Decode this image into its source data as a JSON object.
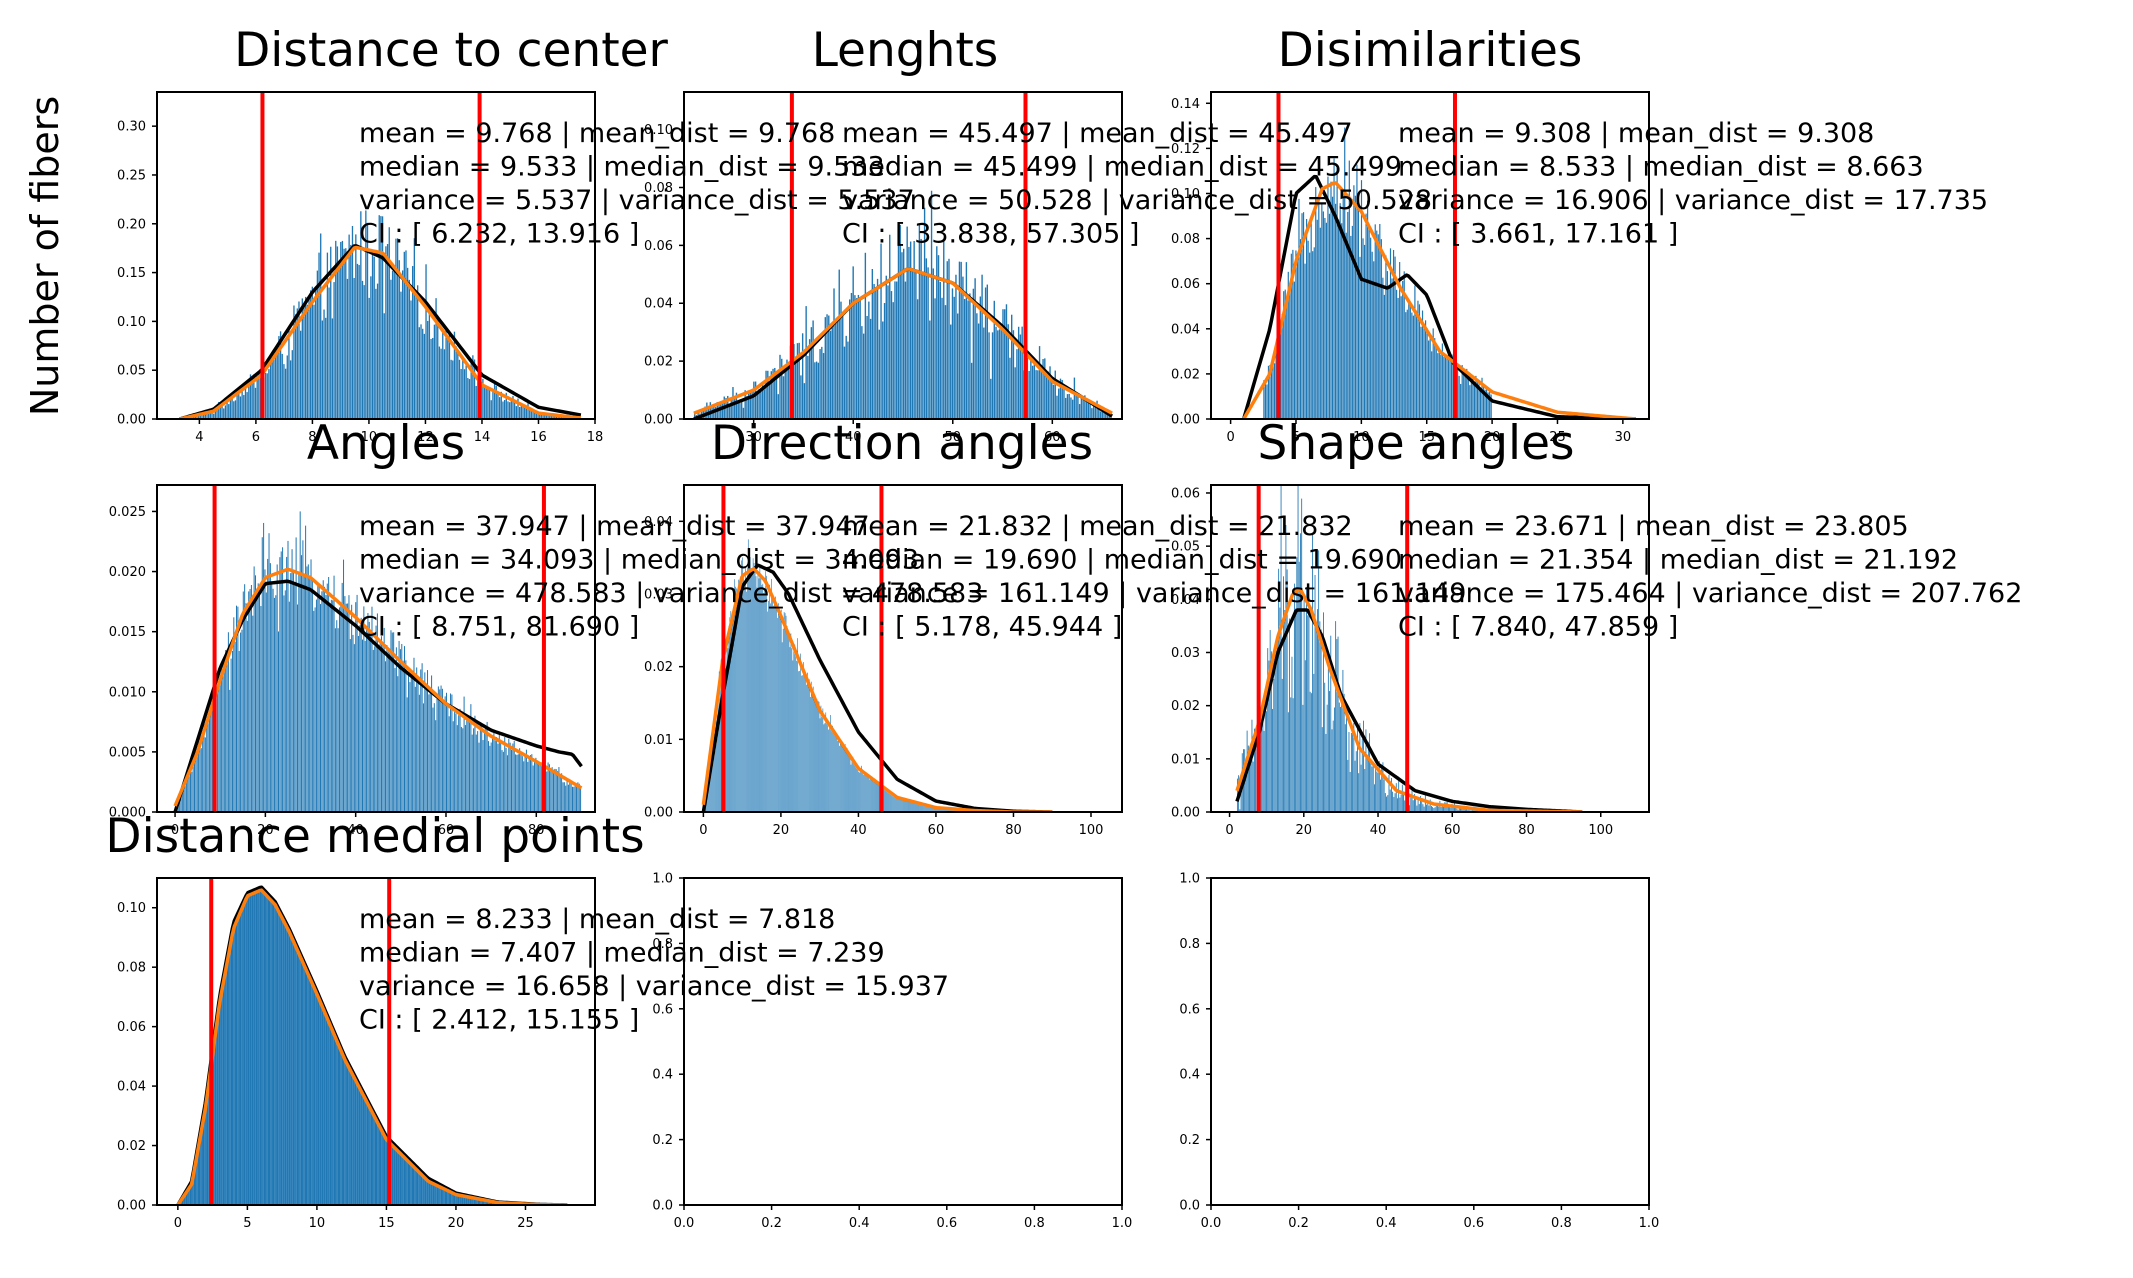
{
  "figure": {
    "ylabel": "Number of fibers"
  },
  "colors": {
    "hist": "#1f77b4",
    "kde": "#000000",
    "fit": "#ff7f0e",
    "ci_lines": "#ff0000"
  },
  "chart_data": [
    {
      "type": "bar",
      "title": "Distance to center",
      "xlim": [
        2.5,
        18
      ],
      "ylim": [
        0,
        0.335
      ],
      "xticks": [
        4,
        6,
        8,
        10,
        12,
        14,
        16,
        18
      ],
      "yticks": [
        0.0,
        0.05,
        0.1,
        0.15,
        0.2,
        0.25,
        0.3
      ],
      "ytick_decimals": 2,
      "ci_lines": [
        6.232,
        13.916
      ],
      "hist_range": [
        3.3,
        17.5
      ],
      "hist_bins": 240,
      "hist_peak": 0.27,
      "hist_noise": 0.25,
      "kde": {
        "x": [
          3.3,
          4.5,
          6.2,
          8,
          9.5,
          10.5,
          12,
          14,
          16,
          17.5
        ],
        "y": [
          0.0,
          0.01,
          0.05,
          0.13,
          0.178,
          0.165,
          0.12,
          0.045,
          0.012,
          0.004
        ]
      },
      "fit": {
        "x": [
          3.3,
          4.5,
          6.2,
          8,
          9.5,
          10.5,
          12,
          14,
          16,
          17.5
        ],
        "y": [
          0.0,
          0.008,
          0.045,
          0.12,
          0.176,
          0.17,
          0.115,
          0.035,
          0.006,
          0.001
        ]
      },
      "stats": [
        "mean = 9.768   |   mean_dist = 9.768",
        "median = 9.533   |   median_dist = 9.533",
        "variance = 5.537   |   variance_dist = 5.537",
        "CI : [ 6.232, 13.916 ]"
      ]
    },
    {
      "type": "bar",
      "title": "Lenghts",
      "xlim": [
        23,
        67
      ],
      "ylim": [
        0,
        0.113
      ],
      "xticks": [
        30,
        40,
        50,
        60
      ],
      "yticks": [
        0.0,
        0.02,
        0.04,
        0.06,
        0.08,
        0.1
      ],
      "ytick_decimals": 2,
      "ci_lines": [
        33.838,
        57.305
      ],
      "hist_range": [
        24,
        66
      ],
      "hist_bins": 240,
      "hist_peak": 0.085,
      "hist_noise": 0.35,
      "kde": {
        "x": [
          24,
          30,
          35,
          40,
          45.5,
          50,
          55,
          60,
          66
        ],
        "y": [
          0.0,
          0.008,
          0.022,
          0.04,
          0.052,
          0.047,
          0.032,
          0.014,
          0.001
        ]
      },
      "fit": {
        "x": [
          24,
          30,
          35,
          40,
          45.5,
          50,
          55,
          60,
          66
        ],
        "y": [
          0.002,
          0.01,
          0.023,
          0.04,
          0.052,
          0.047,
          0.031,
          0.013,
          0.002
        ]
      },
      "stats": [
        "mean = 45.497   |   mean_dist = 45.497",
        "median = 45.499   |   median_dist = 45.499",
        "variance = 50.528   |   variance_dist = 50.528",
        "CI : [ 33.838, 57.305 ]"
      ]
    },
    {
      "type": "bar",
      "title": "Disimilarities",
      "xlim": [
        -1.5,
        32
      ],
      "ylim": [
        0,
        0.145
      ],
      "xticks": [
        0,
        5,
        10,
        15,
        20,
        25,
        30
      ],
      "yticks": [
        0.0,
        0.02,
        0.04,
        0.06,
        0.08,
        0.1,
        0.12,
        0.14
      ],
      "ytick_decimals": 2,
      "ci_lines": [
        3.661,
        17.161
      ],
      "hist_range": [
        2.5,
        20
      ],
      "hist_bins": 150,
      "hist_peak": 0.125,
      "hist_noise": 0.18,
      "kde": {
        "x": [
          1,
          3,
          5,
          6.5,
          8,
          10,
          12,
          13.5,
          15,
          17,
          20,
          25,
          31
        ],
        "y": [
          0.0,
          0.04,
          0.1,
          0.108,
          0.09,
          0.062,
          0.058,
          0.064,
          0.055,
          0.025,
          0.008,
          0.001,
          0.0
        ]
      },
      "fit": {
        "x": [
          1,
          3,
          5,
          7,
          8,
          10,
          13,
          16,
          20,
          25,
          31
        ],
        "y": [
          0.0,
          0.02,
          0.07,
          0.102,
          0.105,
          0.092,
          0.058,
          0.03,
          0.012,
          0.003,
          0.0
        ]
      },
      "stats": [
        "mean = 9.308   |   mean_dist = 9.308",
        "median = 8.533   |   median_dist = 8.663",
        "variance = 16.906   |   variance_dist = 17.735",
        "CI : [ 3.661, 17.161 ]"
      ]
    },
    {
      "type": "bar",
      "title": "Angles",
      "xlim": [
        -4,
        93
      ],
      "ylim": [
        0,
        0.0272
      ],
      "xticks": [
        0,
        20,
        40,
        60,
        80
      ],
      "yticks": [
        0.0,
        0.005,
        0.01,
        0.015,
        0.02,
        0.025
      ],
      "ytick_decimals": 3,
      "ci_lines": [
        8.751,
        81.69
      ],
      "hist_range": [
        0,
        90
      ],
      "hist_bins": 300,
      "hist_peak": 0.022,
      "hist_noise": 0.15,
      "kde": {
        "x": [
          0,
          5,
          10,
          15,
          20,
          25,
          30,
          40,
          50,
          60,
          70,
          80,
          85,
          88,
          90
        ],
        "y": [
          0.0,
          0.006,
          0.012,
          0.016,
          0.019,
          0.0192,
          0.0185,
          0.0155,
          0.012,
          0.009,
          0.0068,
          0.0055,
          0.005,
          0.0048,
          0.0038
        ]
      },
      "fit": {
        "x": [
          0,
          5,
          10,
          15,
          20,
          25,
          30,
          40,
          50,
          60,
          70,
          80,
          90
        ],
        "y": [
          0.0005,
          0.005,
          0.011,
          0.0165,
          0.0195,
          0.0202,
          0.0195,
          0.0162,
          0.0125,
          0.009,
          0.0063,
          0.0042,
          0.002
        ]
      },
      "stats": [
        "mean = 37.947   |   mean_dist = 37.947",
        "median = 34.093   |   median_dist = 34.093",
        "variance = 478.583   |   variance_dist = 478.583",
        "CI : [ 8.751, 81.690 ]"
      ]
    },
    {
      "type": "bar",
      "title": "Direction angles",
      "xlim": [
        -5,
        108
      ],
      "ylim": [
        0,
        0.045
      ],
      "xticks": [
        0,
        20,
        40,
        60,
        80,
        100
      ],
      "yticks": [
        0.0,
        0.01,
        0.02,
        0.03,
        0.04
      ],
      "ytick_decimals": 2,
      "ci_lines": [
        5.178,
        45.944
      ],
      "hist_range": [
        0,
        75
      ],
      "hist_bins": 300,
      "hist_peak": 0.034,
      "hist_noise": 0.08,
      "kde": {
        "x": [
          0,
          5,
          10,
          14,
          18,
          22,
          30,
          40,
          50,
          60,
          70,
          80,
          90
        ],
        "y": [
          0.0,
          0.016,
          0.031,
          0.034,
          0.033,
          0.03,
          0.021,
          0.011,
          0.0045,
          0.0015,
          0.0005,
          0.0001,
          0.0
        ]
      },
      "fit": {
        "x": [
          0,
          5,
          10,
          13,
          16,
          20,
          30,
          40,
          50,
          60,
          70,
          80,
          90
        ],
        "y": [
          0.001,
          0.021,
          0.0325,
          0.0335,
          0.0318,
          0.027,
          0.014,
          0.006,
          0.002,
          0.0006,
          0.0002,
          0.0,
          0.0
        ]
      },
      "stats": [
        "mean = 21.832   |   mean_dist = 21.832",
        "median = 19.690   |   median_dist = 19.690",
        "variance = 161.149   |   variance_dist = 161.149",
        "CI : [ 5.178, 45.944 ]"
      ]
    },
    {
      "type": "bar",
      "title": "Shape angles",
      "xlim": [
        -5,
        113
      ],
      "ylim": [
        0,
        0.0615
      ],
      "xticks": [
        0,
        20,
        40,
        60,
        80,
        100
      ],
      "yticks": [
        0.0,
        0.01,
        0.02,
        0.03,
        0.04,
        0.05,
        0.06
      ],
      "ytick_decimals": 2,
      "ci_lines": [
        7.84,
        47.859
      ],
      "hist_range": [
        2,
        100
      ],
      "hist_bins": 300,
      "hist_peak": 0.04,
      "hist_noise": 0.55,
      "kde": {
        "x": [
          2,
          8,
          13,
          18,
          21,
          25,
          30,
          40,
          50,
          60,
          70,
          80,
          95
        ],
        "y": [
          0.002,
          0.015,
          0.03,
          0.038,
          0.038,
          0.033,
          0.022,
          0.009,
          0.004,
          0.002,
          0.001,
          0.0005,
          0.0
        ]
      },
      "fit": {
        "x": [
          2,
          8,
          13,
          17,
          19,
          22,
          27,
          35,
          45,
          55,
          70,
          95
        ],
        "y": [
          0.004,
          0.017,
          0.033,
          0.041,
          0.042,
          0.038,
          0.027,
          0.012,
          0.004,
          0.0015,
          0.0003,
          0.0
        ]
      },
      "stats": [
        "mean = 23.671   |   mean_dist = 23.805",
        "median = 21.354   |   median_dist = 21.192",
        "variance = 175.464   |   variance_dist = 207.762",
        "CI : [ 7.840, 47.859 ]"
      ]
    },
    {
      "type": "bar",
      "title": "Distance medial points",
      "xlim": [
        -1.5,
        30
      ],
      "ylim": [
        0,
        0.11
      ],
      "xticks": [
        0,
        5,
        10,
        15,
        20,
        25
      ],
      "yticks": [
        0.0,
        0.02,
        0.04,
        0.06,
        0.08,
        0.1
      ],
      "ytick_decimals": 2,
      "ci_lines": [
        2.4,
        15.2
      ],
      "hist_range": [
        0,
        28.5
      ],
      "hist_bins": 300,
      "hist_peak": 0.107,
      "hist_noise": 0.0,
      "kde": {
        "x": [
          0,
          1,
          2,
          3,
          4,
          5,
          6,
          7,
          8,
          10,
          12,
          15,
          18,
          20,
          23,
          26,
          28
        ],
        "y": [
          0.0,
          0.008,
          0.035,
          0.07,
          0.095,
          0.105,
          0.107,
          0.102,
          0.093,
          0.072,
          0.05,
          0.023,
          0.009,
          0.004,
          0.001,
          0.0002,
          0.0
        ]
      },
      "fit": {
        "x": [
          0,
          1,
          2,
          3,
          4,
          5,
          6,
          7,
          8,
          10,
          12,
          15,
          18,
          20,
          23,
          26,
          28
        ],
        "y": [
          0.0,
          0.007,
          0.033,
          0.068,
          0.093,
          0.104,
          0.106,
          0.101,
          0.092,
          0.071,
          0.049,
          0.022,
          0.008,
          0.0035,
          0.0008,
          0.0001,
          0.0
        ]
      },
      "stats": [
        "mean = 8.233   |   mean_dist = 7.818",
        "median = 7.407   |   median_dist = 7.239",
        "variance = 16.658   |   variance_dist = 15.937",
        "CI : [ 2.412, 15.155 ]"
      ]
    },
    {
      "type": "empty",
      "title": "",
      "xlim": [
        0,
        1
      ],
      "ylim": [
        0,
        1
      ],
      "xticks": [
        0.0,
        0.2,
        0.4,
        0.6,
        0.8,
        1.0
      ],
      "yticks": [
        0.0,
        0.2,
        0.4,
        0.6,
        0.8,
        1.0
      ],
      "ytick_decimals": 1,
      "ci_lines": [],
      "stats": []
    },
    {
      "type": "empty",
      "title": "",
      "xlim": [
        0,
        1
      ],
      "ylim": [
        0,
        1
      ],
      "xticks": [
        0.0,
        0.2,
        0.4,
        0.6,
        0.8,
        1.0
      ],
      "yticks": [
        0.0,
        0.2,
        0.4,
        0.6,
        0.8,
        1.0
      ],
      "ytick_decimals": 1,
      "ci_lines": [],
      "stats": []
    }
  ]
}
